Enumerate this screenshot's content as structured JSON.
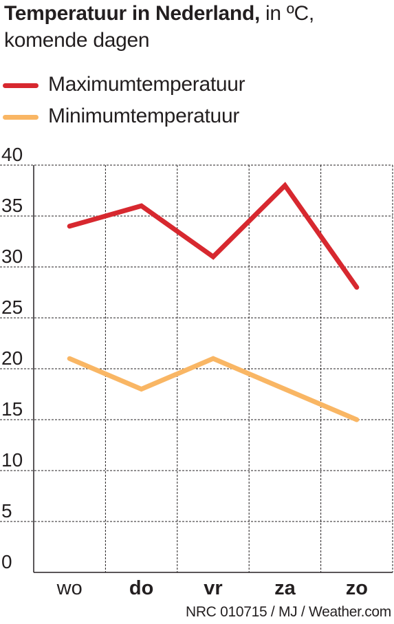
{
  "title": {
    "bold": "Temperatuur in Nederland,",
    "rest_line1": " in ºC,",
    "line2": "komende dagen"
  },
  "source": "NRC 010715 / MJ / Weather.com",
  "colors": {
    "max": "#d7282f",
    "min": "#f9b664",
    "axis": "#231f20",
    "grid": "#231f20"
  },
  "chart_data": {
    "type": "line",
    "categories": [
      "wo",
      "do",
      "vr",
      "za",
      "zo"
    ],
    "category_bold": [
      false,
      true,
      true,
      true,
      true
    ],
    "series": [
      {
        "name": "Maximumtemperatuur",
        "color": "#d7282f",
        "values": [
          34,
          36,
          31,
          38,
          28
        ]
      },
      {
        "name": "Minimumtemperatuur",
        "color": "#f9b664",
        "values": [
          21,
          18,
          21,
          18,
          15
        ]
      }
    ],
    "ylim": [
      0,
      40
    ],
    "yticks": [
      "0",
      "5",
      "10",
      "15",
      "20",
      "25",
      "30",
      "35",
      "40"
    ],
    "grid": true,
    "legend_position": "top-left"
  }
}
